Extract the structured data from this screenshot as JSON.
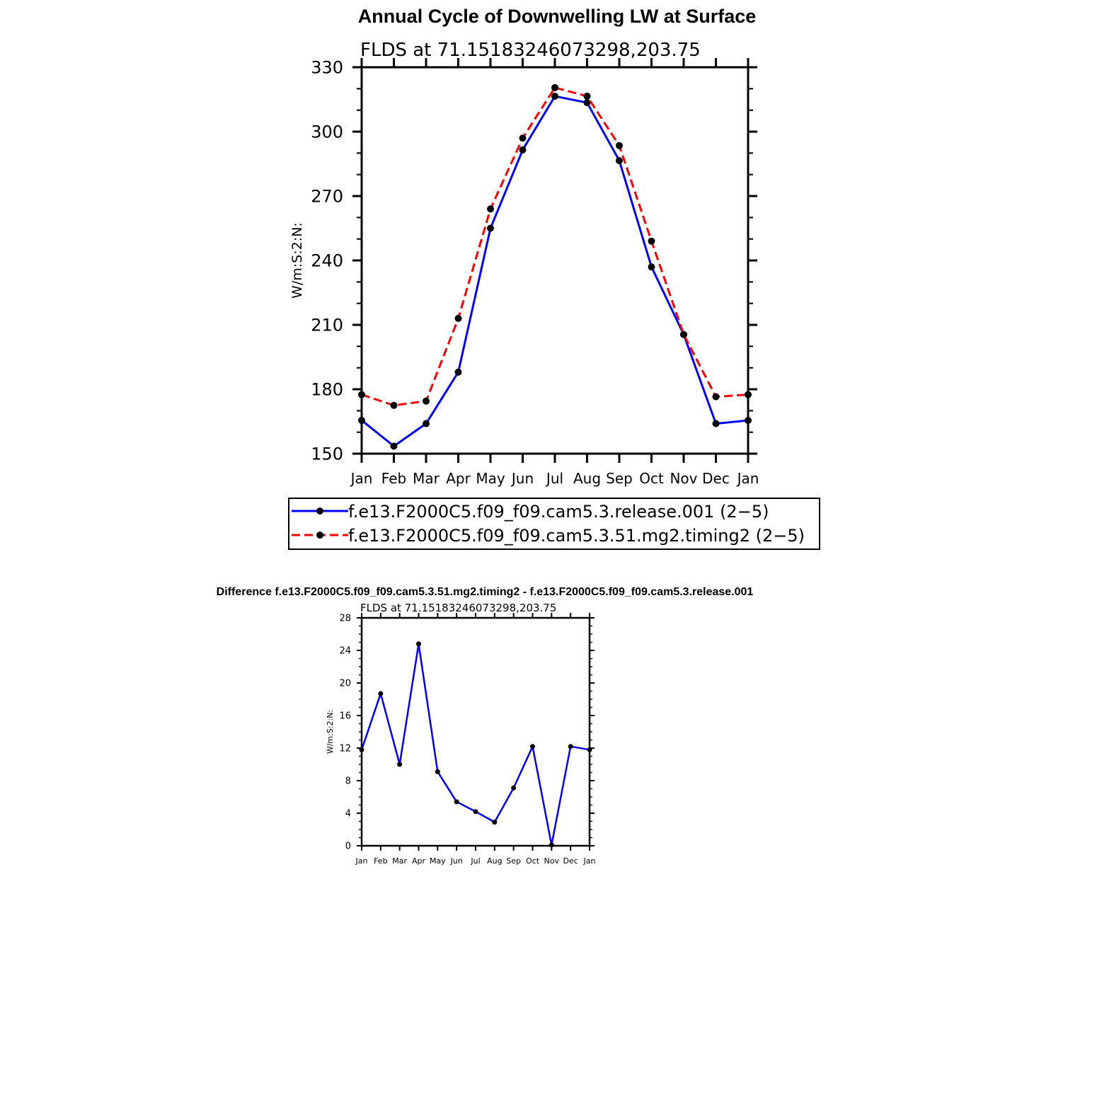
{
  "colors": {
    "series_a": "#0000ff",
    "series_b": "#ff0000",
    "marker": "#000000"
  },
  "chart_data": [
    {
      "type": "line",
      "title": "Annual Cycle of Downwelling LW at Surface",
      "subtitle": "FLDS at 71.15183246073298,203.75",
      "xlabel": "",
      "ylabel": "W/m:S:2:N:",
      "categories": [
        "Jan",
        "Feb",
        "Mar",
        "Apr",
        "May",
        "Jun",
        "Jul",
        "Aug",
        "Sep",
        "Oct",
        "Nov",
        "Dec",
        "Jan"
      ],
      "ylim": [
        150,
        330
      ],
      "yticks": [
        150,
        180,
        210,
        240,
        270,
        300,
        330
      ],
      "legend_position": "bottom",
      "series": [
        {
          "name": "f.e13.F2000C5.f09_f09.cam5.3.release.001 (2−5)",
          "style": "solid",
          "color": "#0000ff",
          "values": [
            165.5,
            153.5,
            164,
            188,
            255,
            291.5,
            316.5,
            313.5,
            286.5,
            237,
            205.5,
            164,
            165.5
          ]
        },
        {
          "name": "f.e13.F2000C5.f09_f09.cam5.3.51.mg2.timing2 (2−5)",
          "style": "dashed",
          "color": "#ff0000",
          "values": [
            177.5,
            172.5,
            174.5,
            213,
            264,
            297,
            320.5,
            316.5,
            293.5,
            249,
            205.5,
            176.5,
            177.5
          ]
        }
      ],
      "grid": false
    },
    {
      "type": "line",
      "title": "Difference f.e13.F2000C5.f09_f09.cam5.3.51.mg2.timing2 - f.e13.F2000C5.f09_f09.cam5.3.release.001",
      "subtitle": "FLDS at 71.15183246073298,203.75",
      "xlabel": "",
      "ylabel": "W/m:S:2:N:",
      "categories": [
        "Jan",
        "Feb",
        "Mar",
        "Apr",
        "May",
        "Jun",
        "Jul",
        "Aug",
        "Sep",
        "Oct",
        "Nov",
        "Dec",
        "Jan"
      ],
      "ylim": [
        0,
        28
      ],
      "yticks": [
        0,
        4,
        8,
        12,
        16,
        20,
        24,
        28
      ],
      "series": [
        {
          "color": "#0000ff",
          "values": [
            11.8,
            18.7,
            10,
            24.8,
            9.1,
            5.4,
            4.2,
            2.9,
            7.1,
            12.2,
            0.1,
            12.2,
            11.8
          ]
        }
      ],
      "grid": false
    }
  ]
}
